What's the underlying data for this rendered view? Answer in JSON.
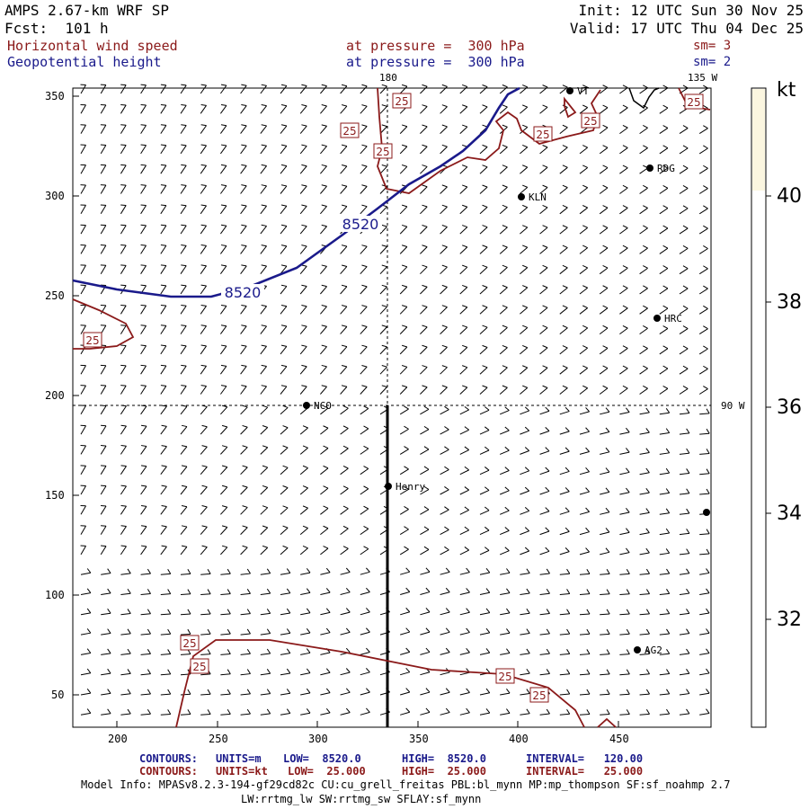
{
  "header": {
    "model": "AMPS 2.67-km WRF SP",
    "forecast": "Fcst:  101 h",
    "init": "Init: 12 UTC Sun 30 Nov 25",
    "valid": "Valid: 17 UTC Thu 04 Dec 25",
    "field1_name": "Horizontal wind speed",
    "field1_level": "at pressure =  300 hPa",
    "field1_sm": "sm= 3",
    "field2_name": "Geopotential height",
    "field2_level": "at pressure =  300 hPa",
    "field2_sm": "sm= 2"
  },
  "map": {
    "x_ticks": [
      "200",
      "250",
      "300",
      "350",
      "400",
      "450"
    ],
    "y_ticks": [
      "350",
      "300",
      "250",
      "200",
      "150",
      "100",
      "50"
    ],
    "meridian_labels": {
      "top_180": "180",
      "top_135w": "135 W",
      "right_90w": "90 W"
    },
    "stations": [
      {
        "id": "VT",
        "label": "VT"
      },
      {
        "id": "RDG",
        "label": "RDG"
      },
      {
        "id": "KLN",
        "label": "KLN"
      },
      {
        "id": "HRC",
        "label": "HRC"
      },
      {
        "id": "NCO",
        "label": "NCO"
      },
      {
        "id": "Henry",
        "label": "Henry"
      },
      {
        "id": "AG2",
        "label": "AG2"
      }
    ],
    "height_contour_labels": [
      "8520",
      "8520"
    ],
    "speed_contour_labels": [
      "25",
      "25",
      "25",
      "25",
      "25",
      "25",
      "25",
      "25",
      "25",
      "25",
      "25"
    ]
  },
  "colorbar": {
    "unit": "kt",
    "labels": [
      "40",
      "38",
      "36",
      "34",
      "32"
    ],
    "fill_color": "#fbf6e0"
  },
  "footer": {
    "row1": {
      "name": "CONTOURS:",
      "units": "UNITS=m",
      "low": "LOW=  8520.0",
      "high": "HIGH=  8520.0",
      "interval": "INTERVAL=   120.00"
    },
    "row2": {
      "name": "CONTOURS:",
      "units": "UNITS=kt",
      "low": "LOW=  25.000",
      "high": "HIGH=  25.000",
      "interval": "INTERVAL=   25.000"
    },
    "model_info": "Model Info: MPASv8.2.3-194-gf29cd82c CU:cu_grell_freitas PBL:bl_mynn MP:mp_thompson SF:sf_noahmp 2.7",
    "model_info2": "LW:rrtmg_lw SW:rrtmg_sw SFLAY:sf_mynn"
  },
  "colors": {
    "speed_contour": "#8b1a1a",
    "height_contour": "#1a1a8b"
  }
}
